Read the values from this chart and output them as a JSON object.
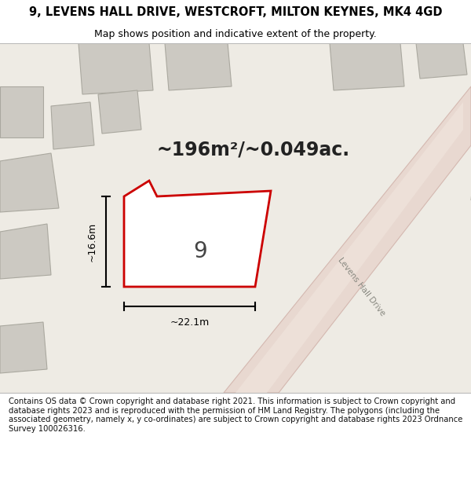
{
  "title": "9, LEVENS HALL DRIVE, WESTCROFT, MILTON KEYNES, MK4 4GD",
  "subtitle": "Map shows position and indicative extent of the property.",
  "footer": "Contains OS data © Crown copyright and database right 2021. This information is subject to Crown copyright and database rights 2023 and is reproduced with the permission of HM Land Registry. The polygons (including the associated geometry, namely x, y co-ordinates) are subject to Crown copyright and database rights 2023 Ordnance Survey 100026316.",
  "area_text": "~196m²/~0.049ac.",
  "property_number": "9",
  "dim_width": "~22.1m",
  "dim_height": "~16.6m",
  "map_bg": "#eeebe4",
  "property_fill": "#ffffff",
  "property_edge": "#cc0000",
  "road_color": "#e8d8d0",
  "road_outline": "#d4b8b0",
  "building_fill": "#ccc9c2",
  "building_outline": "#aaa89f",
  "title_fontsize": 10.5,
  "subtitle_fontsize": 9,
  "footer_fontsize": 7.2,
  "title_weight": "normal"
}
